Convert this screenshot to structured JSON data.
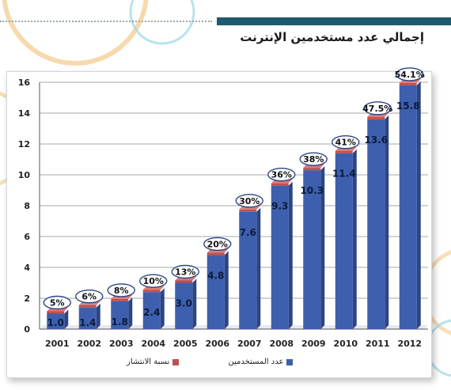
{
  "header": {
    "title": "إجمالي عدد مستخدمين الإنترنت"
  },
  "colors": {
    "bar_front": "#3d5fae",
    "bar_side": "#2b4585",
    "bar_top": "#6a86c9",
    "cap": "#c0504d",
    "accent_bar": "#1e5a6e",
    "ellipse": "#2b4585"
  },
  "legend": {
    "users_label": "عدد المستخدمين",
    "penetration_label": "نسبة الانتشار"
  },
  "chart_data": {
    "type": "bar",
    "title": "إجمالي عدد مستخدمين الإنترنت",
    "categories": [
      "2001",
      "2002",
      "2003",
      "2004",
      "2005",
      "2006",
      "2007",
      "2008",
      "2009",
      "2010",
      "2011",
      "2012"
    ],
    "series": [
      {
        "name": "عدد المستخدمين",
        "values": [
          1.0,
          1.4,
          1.8,
          2.4,
          3.0,
          4.8,
          7.6,
          9.3,
          10.3,
          11.4,
          13.6,
          15.8
        ]
      },
      {
        "name": "نسبة الانتشار",
        "values": [
          "5%",
          "6%",
          "8%",
          "10%",
          "13%",
          "20%",
          "30%",
          "36%",
          "38%",
          "41%",
          "47.5%",
          "54.1%"
        ]
      }
    ],
    "value_labels": [
      "1.0",
      "1.4",
      "1.8",
      "2.4",
      "3.0",
      "4.8",
      "7.6",
      "9.3",
      "10.3",
      "11.4",
      "13.6",
      "15.8"
    ],
    "yticks": [
      "0",
      "2",
      "4",
      "6",
      "8",
      "10",
      "12",
      "14",
      "16"
    ],
    "ylim": [
      0,
      16
    ],
    "grid": true,
    "legend_position": "bottom"
  }
}
